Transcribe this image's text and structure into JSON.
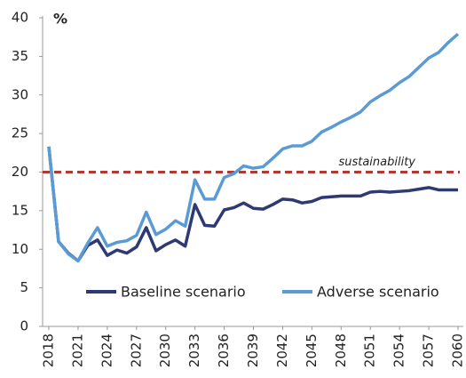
{
  "chart_data": {
    "type": "line",
    "y_label": "%",
    "x": [
      2018,
      2019,
      2020,
      2021,
      2022,
      2023,
      2024,
      2025,
      2026,
      2027,
      2028,
      2029,
      2030,
      2031,
      2032,
      2033,
      2034,
      2035,
      2036,
      2037,
      2038,
      2039,
      2040,
      2041,
      2042,
      2043,
      2044,
      2045,
      2046,
      2047,
      2048,
      2049,
      2050,
      2051,
      2052,
      2053,
      2054,
      2055,
      2056,
      2057,
      2058,
      2059,
      2060
    ],
    "series": [
      {
        "name": "Baseline scenario",
        "color": "#2e3a72",
        "values": [
          23.3,
          11,
          9.5,
          8.5,
          10.5,
          11.2,
          9.2,
          9.9,
          9.5,
          10.3,
          12.8,
          9.8,
          10.6,
          11.2,
          10.4,
          15.8,
          13.1,
          13.0,
          15.1,
          15.4,
          16.0,
          15.3,
          15.2,
          15.8,
          16.5,
          16.4,
          16.0,
          16.2,
          16.7,
          16.8,
          16.9,
          16.9,
          16.9,
          17.4,
          17.5,
          17.4,
          17.5,
          17.6,
          17.8,
          18.0,
          17.7,
          17.7,
          17.7
        ]
      },
      {
        "name": "Adverse scenario",
        "color": "#5b9bd5",
        "values": [
          23.3,
          11,
          9.4,
          8.5,
          10.8,
          12.8,
          10.4,
          10.9,
          11.1,
          11.8,
          14.8,
          11.9,
          12.6,
          13.7,
          13.0,
          19.0,
          16.5,
          16.5,
          19.3,
          19.8,
          20.8,
          20.5,
          20.7,
          21.8,
          23.0,
          23.4,
          23.4,
          24.0,
          25.2,
          25.8,
          26.5,
          27.1,
          27.8,
          29.1,
          29.9,
          30.6,
          31.6,
          32.4,
          33.6,
          34.8,
          35.5,
          36.8,
          37.9
        ]
      }
    ],
    "reference_lines": [
      {
        "value": 20,
        "label": "sustainability",
        "color": "#b03a32"
      }
    ],
    "xlim": [
      2018,
      2060
    ],
    "xticks": [
      2018,
      2021,
      2024,
      2027,
      2030,
      2033,
      2036,
      2039,
      2042,
      2045,
      2048,
      2051,
      2054,
      2057,
      2060
    ],
    "ylim": [
      0,
      40
    ],
    "yticks": [
      0,
      5,
      10,
      15,
      20,
      25,
      30,
      35,
      40
    ],
    "grid": false,
    "legend": "bottom"
  }
}
